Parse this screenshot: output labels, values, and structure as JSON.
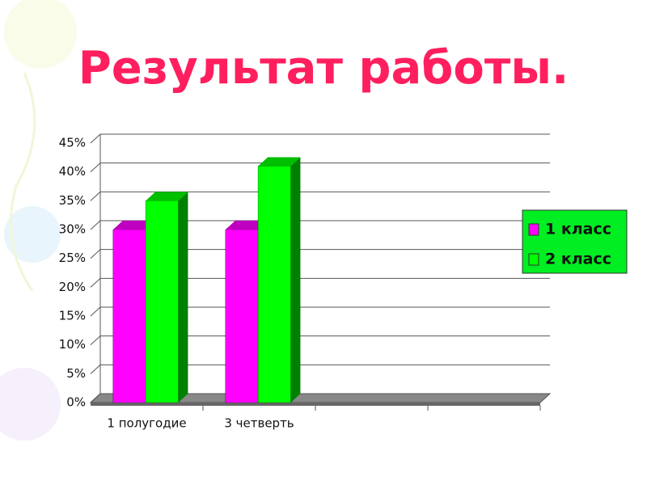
{
  "chart_data": {
    "type": "bar3d",
    "title": "Результат работы.",
    "categories": [
      "1 полугодие",
      "3 четверть",
      null,
      null
    ],
    "series": [
      {
        "name": "1 класс",
        "color": "#ff00ff",
        "values": [
          30,
          30,
          null,
          null
        ]
      },
      {
        "name": "2 класс",
        "color": "#00ff00",
        "values": [
          35,
          41,
          null,
          null
        ]
      }
    ],
    "ylim": [
      0,
      45
    ],
    "yticks": [
      {
        "value": 0,
        "label": "0%"
      },
      {
        "value": 5,
        "label": "5%"
      },
      {
        "value": 10,
        "label": "10%"
      },
      {
        "value": 15,
        "label": "15%"
      },
      {
        "value": 20,
        "label": "20%"
      },
      {
        "value": 25,
        "label": "25%"
      },
      {
        "value": 30,
        "label": "30%"
      },
      {
        "value": 35,
        "label": "35%"
      },
      {
        "value": 40,
        "label": "40%"
      },
      {
        "value": 45,
        "label": "45%"
      }
    ],
    "grid": true,
    "legend": "right"
  }
}
